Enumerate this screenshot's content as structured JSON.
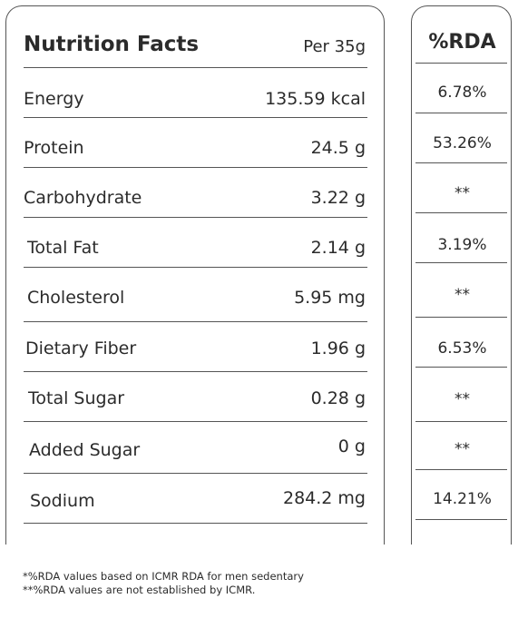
{
  "title": "Nutrition Facts",
  "serving": "Per 35g",
  "rda_header": "%RDA",
  "rows": [
    {
      "label": "Energy",
      "value": "135.59 kcal",
      "rda": "6.78%"
    },
    {
      "label": "Protein",
      "value": "24.5 g",
      "rda": "53.26%"
    },
    {
      "label": "Carbohydrate",
      "value": "3.22 g",
      "rda": "**"
    },
    {
      "label": "Total Fat",
      "value": "2.14 g",
      "rda": "3.19%"
    },
    {
      "label": "Cholesterol",
      "value": "5.95 mg",
      "rda": "**"
    },
    {
      "label": "Dietary Fiber",
      "value": "1.96 g",
      "rda": "6.53%"
    },
    {
      "label": "Total Sugar",
      "value": "0.28 g",
      "rda": "**"
    },
    {
      "label": "Added Sugar",
      "value": "0 g",
      "rda": "**"
    },
    {
      "label": "Sodium",
      "value": "284.2 mg",
      "rda": "14.21%"
    }
  ],
  "footnotes": [
    "*%RDA values based on ICMR RDA for men sedentary",
    "**%RDA values are not established by ICMR."
  ]
}
